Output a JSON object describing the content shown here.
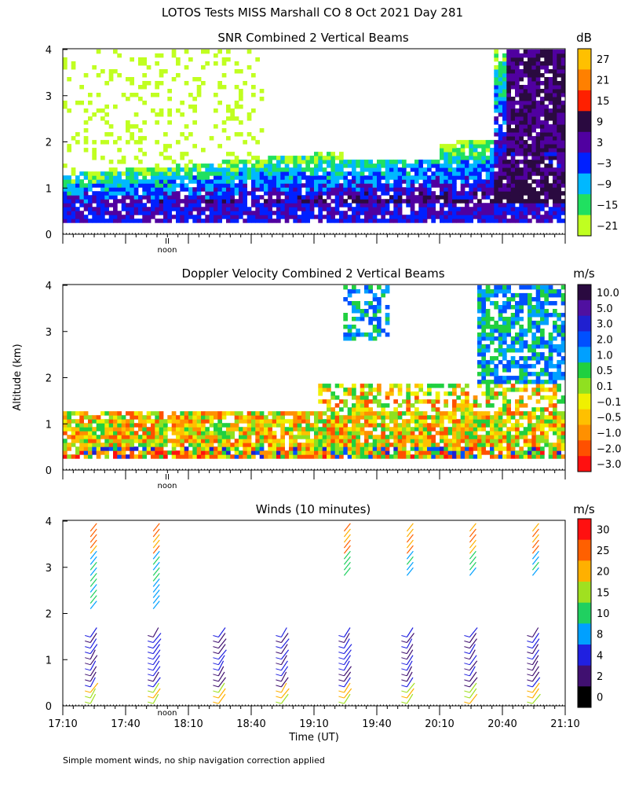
{
  "title": "LOTOS Tests MISS Marshall CO   8 Oct 2021 Day 281",
  "ylabel": "Altitude (km)",
  "xlabel": "Time (UT)",
  "footnote": "Simple moment winds, no ship navigation correction applied",
  "noon_label": "noon",
  "noon_marker": "II",
  "chart_data": [
    {
      "type": "heatmap",
      "title": "SNR Combined 2 Vertical Beams",
      "units": "dB",
      "ylim": [
        0,
        4
      ],
      "yticks": [
        "0",
        "1",
        "2",
        "3",
        "4"
      ],
      "colorbar": {
        "labels": [
          "27",
          "21",
          "15",
          "9",
          "3",
          "−3",
          "−9",
          "−15",
          "−21"
        ],
        "colors": [
          "#ffc000",
          "#ff8000",
          "#ff2000",
          "#2a0a40",
          "#5000a0",
          "#0020ff",
          "#00b8ff",
          "#20e060",
          "#c0ff20"
        ]
      }
    },
    {
      "type": "heatmap",
      "title": "Doppler Velocity Combined 2 Vertical Beams",
      "units": "m/s",
      "ylim": [
        0,
        4
      ],
      "yticks": [
        "0",
        "1",
        "2",
        "3",
        "4"
      ],
      "colorbar": {
        "labels": [
          "10.0",
          "5.0",
          "3.0",
          "2.0",
          "1.0",
          "0.5",
          "0.1",
          "−0.1",
          "−0.5",
          "−1.0",
          "−2.0",
          "−3.0"
        ],
        "colors": [
          "#2a0a40",
          "#5010a0",
          "#2020d0",
          "#0050ff",
          "#00a0ff",
          "#20d040",
          "#90e020",
          "#f0f000",
          "#ffc000",
          "#ff9000",
          "#ff5000",
          "#ff1010"
        ]
      }
    },
    {
      "type": "scatter",
      "title": "Winds (10 minutes)",
      "units": "m/s",
      "ylim": [
        0,
        4
      ],
      "yticks": [
        "0",
        "1",
        "2",
        "3",
        "4"
      ],
      "xticks": [
        "17:10",
        "17:40",
        "18:10",
        "18:40",
        "19:10",
        "19:40",
        "20:10",
        "20:40",
        "21:10"
      ],
      "colorbar": {
        "labels": [
          "30",
          "25",
          "20",
          "15",
          "10",
          "8",
          "4",
          "2",
          "0"
        ],
        "colors": [
          "#ff1010",
          "#ff6000",
          "#ffb000",
          "#a0e020",
          "#20d060",
          "#00a0ff",
          "#2020e0",
          "#401070",
          "#000000"
        ]
      },
      "profiles_time_fraction": [
        0.055,
        0.18,
        0.31,
        0.435,
        0.56,
        0.685,
        0.81,
        0.935
      ]
    }
  ]
}
